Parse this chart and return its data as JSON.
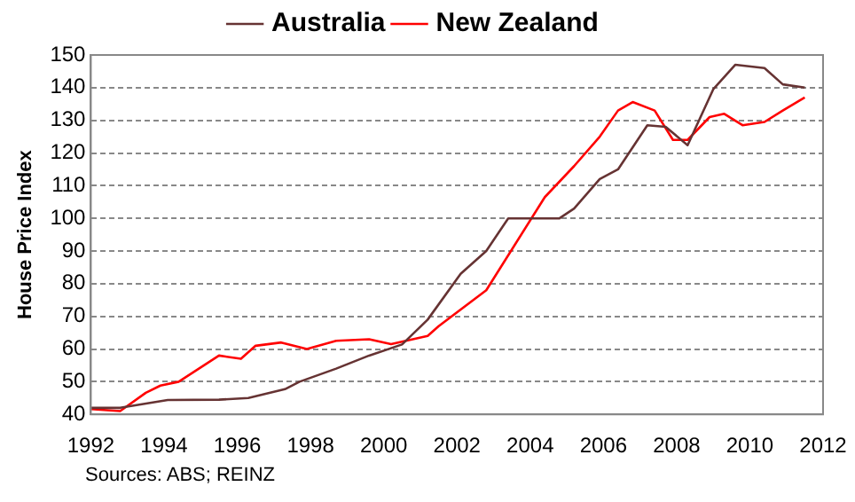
{
  "chart_data": {
    "type": "line",
    "ylabel": "House Price Index",
    "annotations": [
      "Sources: ABS; REINZ"
    ],
    "xlim": [
      1992,
      2012
    ],
    "xticks": [
      1992,
      1994,
      1996,
      1998,
      2000,
      2002,
      2004,
      2006,
      2008,
      2010,
      2012
    ],
    "ylim": [
      40,
      150
    ],
    "yticks": [
      40,
      50,
      60,
      70,
      80,
      90,
      100,
      110,
      120,
      130,
      140,
      150
    ],
    "grid": "y",
    "legend": "top",
    "marker": "none",
    "line_style": "solid",
    "series": [
      {
        "name": "Australia",
        "color": "#663333",
        "x": [
          1992,
          1992.8,
          1994.1,
          1995.5,
          1996.3,
          1997.3,
          1997.7,
          1998.7,
          1999.6,
          2000.5,
          2001.2,
          2002.1,
          2002.8,
          2003.4,
          2004.8,
          2005.2,
          2005.9,
          2006.4,
          2007.2,
          2007.7,
          2008.3,
          2009,
          2009.6,
          2010.4,
          2010.9,
          2011.5
        ],
        "values": [
          42,
          42,
          44.4,
          44.5,
          45,
          47.7,
          50,
          54,
          58,
          61.4,
          69,
          83,
          90,
          100,
          100,
          103,
          112,
          115,
          128.5,
          128,
          122.4,
          139.5,
          147,
          146,
          141,
          140
        ]
      },
      {
        "name": "New Zealand",
        "color": "#ff0000",
        "x": [
          1992,
          1992.8,
          1993.5,
          1993.9,
          1994.4,
          1995.5,
          1996.1,
          1996.5,
          1997.2,
          1997.9,
          1998.7,
          1999.6,
          2000.2,
          2001.2,
          2001.5,
          2002.8,
          2004.4,
          2005.2,
          2005.9,
          2006.4,
          2006.8,
          2007.4,
          2007.9,
          2008.3,
          2008.9,
          2009.3,
          2009.8,
          2010.4,
          2010.9,
          2011.5
        ],
        "values": [
          41.6,
          41,
          46.6,
          48.8,
          50,
          58,
          57,
          61,
          62,
          60,
          62.5,
          63,
          61.5,
          64,
          67,
          78,
          106.5,
          116,
          125,
          133,
          135.6,
          133,
          124,
          124,
          131,
          132,
          128.5,
          129.5,
          133,
          137
        ]
      }
    ]
  }
}
